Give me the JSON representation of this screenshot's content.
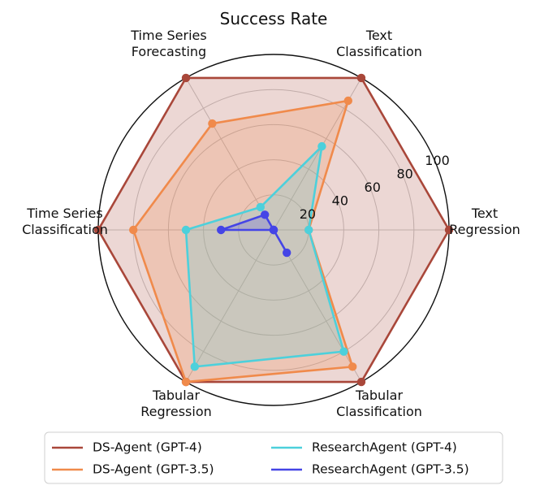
{
  "chart_data": {
    "type": "radar",
    "title": "Success Rate",
    "categories": [
      "Text\nRegression",
      "Text\nClassification",
      "Time Series\nForecasting",
      "Time Series\nClassification",
      "Tabular\nRegression",
      "Tabular\nClassification"
    ],
    "rlim": [
      0,
      100
    ],
    "rticks": [
      20,
      40,
      60,
      80,
      100
    ],
    "rtick_labels": [
      "20",
      "40",
      "60",
      "80",
      "100"
    ],
    "grid": true,
    "legend_position": "bottom",
    "series": [
      {
        "name": "DS-Agent (GPT-4)",
        "color": "#A9473A",
        "values": [
          100,
          100,
          100,
          100,
          100,
          100
        ]
      },
      {
        "name": "DS-Agent (GPT-3.5)",
        "color": "#F08A4B",
        "values": [
          20,
          85,
          70,
          80,
          100,
          90
        ]
      },
      {
        "name": "ResearchAgent (GPT-4)",
        "color": "#4DD0DB",
        "values": [
          20,
          55,
          15,
          50,
          90,
          80
        ]
      },
      {
        "name": "ResearchAgent (GPT-3.5)",
        "color": "#4545E6",
        "values": [
          0,
          0,
          10,
          30,
          0,
          15
        ]
      }
    ]
  }
}
